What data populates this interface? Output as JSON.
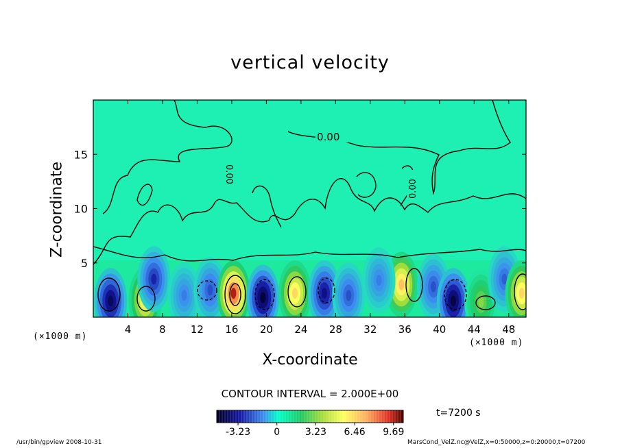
{
  "chart_data": {
    "type": "heatmap",
    "title": "vertical velocity",
    "xlabel": "X-coordinate",
    "ylabel": "Z-coordinate",
    "x_unit": "(×1000 m)",
    "y_unit": "(×1000 m)",
    "x_ticks": [
      4,
      8,
      12,
      16,
      20,
      24,
      28,
      32,
      36,
      40,
      44,
      48
    ],
    "y_ticks": [
      5,
      10,
      15
    ],
    "xlim": [
      0,
      50
    ],
    "ylim": [
      0,
      20
    ],
    "contour_label": "0.00",
    "contour_interval_text": "CONTOUR INTERVAL = 2.000E+00",
    "colorbar": {
      "ticks": [
        -3.23,
        0,
        3.23,
        6.46,
        9.69
      ],
      "tick_labels": [
        "-3.23",
        "0",
        "3.23",
        "6.46",
        "9.69"
      ],
      "range": [
        -5.0,
        10.5
      ]
    },
    "cells": [
      {
        "x": 2.0,
        "z": 1.5,
        "w": -4.2
      },
      {
        "x": 6.0,
        "z": 1.6,
        "w": 6.0
      },
      {
        "x": 7.0,
        "z": 3.5,
        "w": -3.0
      },
      {
        "x": 10.5,
        "z": 2.0,
        "w": -1.8
      },
      {
        "x": 13.5,
        "z": 2.5,
        "w": -2.4
      },
      {
        "x": 16.2,
        "z": 2.2,
        "w": 9.5
      },
      {
        "x": 19.6,
        "z": 1.8,
        "w": -4.6
      },
      {
        "x": 23.3,
        "z": 2.2,
        "w": 6.5
      },
      {
        "x": 26.7,
        "z": 2.2,
        "w": -3.6
      },
      {
        "x": 29.5,
        "z": 2.0,
        "w": -2.4
      },
      {
        "x": 35.6,
        "z": 3.0,
        "w": 7.0
      },
      {
        "x": 33.0,
        "z": 3.4,
        "w": -1.8
      },
      {
        "x": 39.3,
        "z": 2.8,
        "w": -2.4
      },
      {
        "x": 41.6,
        "z": 1.5,
        "w": -4.5
      },
      {
        "x": 44.8,
        "z": 1.4,
        "w": 3.2
      },
      {
        "x": 47.5,
        "z": 3.5,
        "w": -2.2
      },
      {
        "x": 49.5,
        "z": 2.2,
        "w": 6.5
      }
    ],
    "time_label": "t=7200 s",
    "footer_left": "/usr/bin/gpview   2008-10-31",
    "footer_right": "MarsCond_VelZ.nc@VelZ,x=0:50000,z=0:20000,t=07200"
  }
}
